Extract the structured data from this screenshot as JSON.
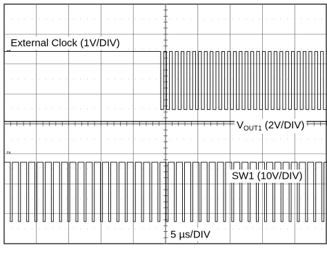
{
  "chart_data": {
    "type": "line",
    "title": "",
    "xlabel": "",
    "ylabel": "",
    "grid": true,
    "grid_divisions": {
      "x": 10,
      "y": 8
    },
    "x_unit_label": "5 µs/DIV",
    "series": [
      {
        "name": "External Clock (1V/DIV)",
        "kind": "square",
        "start_div": 4.85,
        "period_div": 0.18,
        "duty": 0.5,
        "low_div": 1.58,
        "high_div": 3.52,
        "ground_marker": "1",
        "ground_div": 1.6
      },
      {
        "name_main": "V",
        "name_sub": "OUT1",
        "name_rest": " (2V/DIV)",
        "kind": "flat",
        "level_div": 3.92,
        "ground_marker": "",
        "ground_div": 3.92
      },
      {
        "name": "SW1 (10V/DIV)",
        "kind": "square",
        "start_div": 0.0,
        "period_div": 0.254,
        "duty": 0.75,
        "low_div": 7.26,
        "high_div": 5.28,
        "ground_marker": "2",
        "ground_div": 5.0
      }
    ]
  }
}
